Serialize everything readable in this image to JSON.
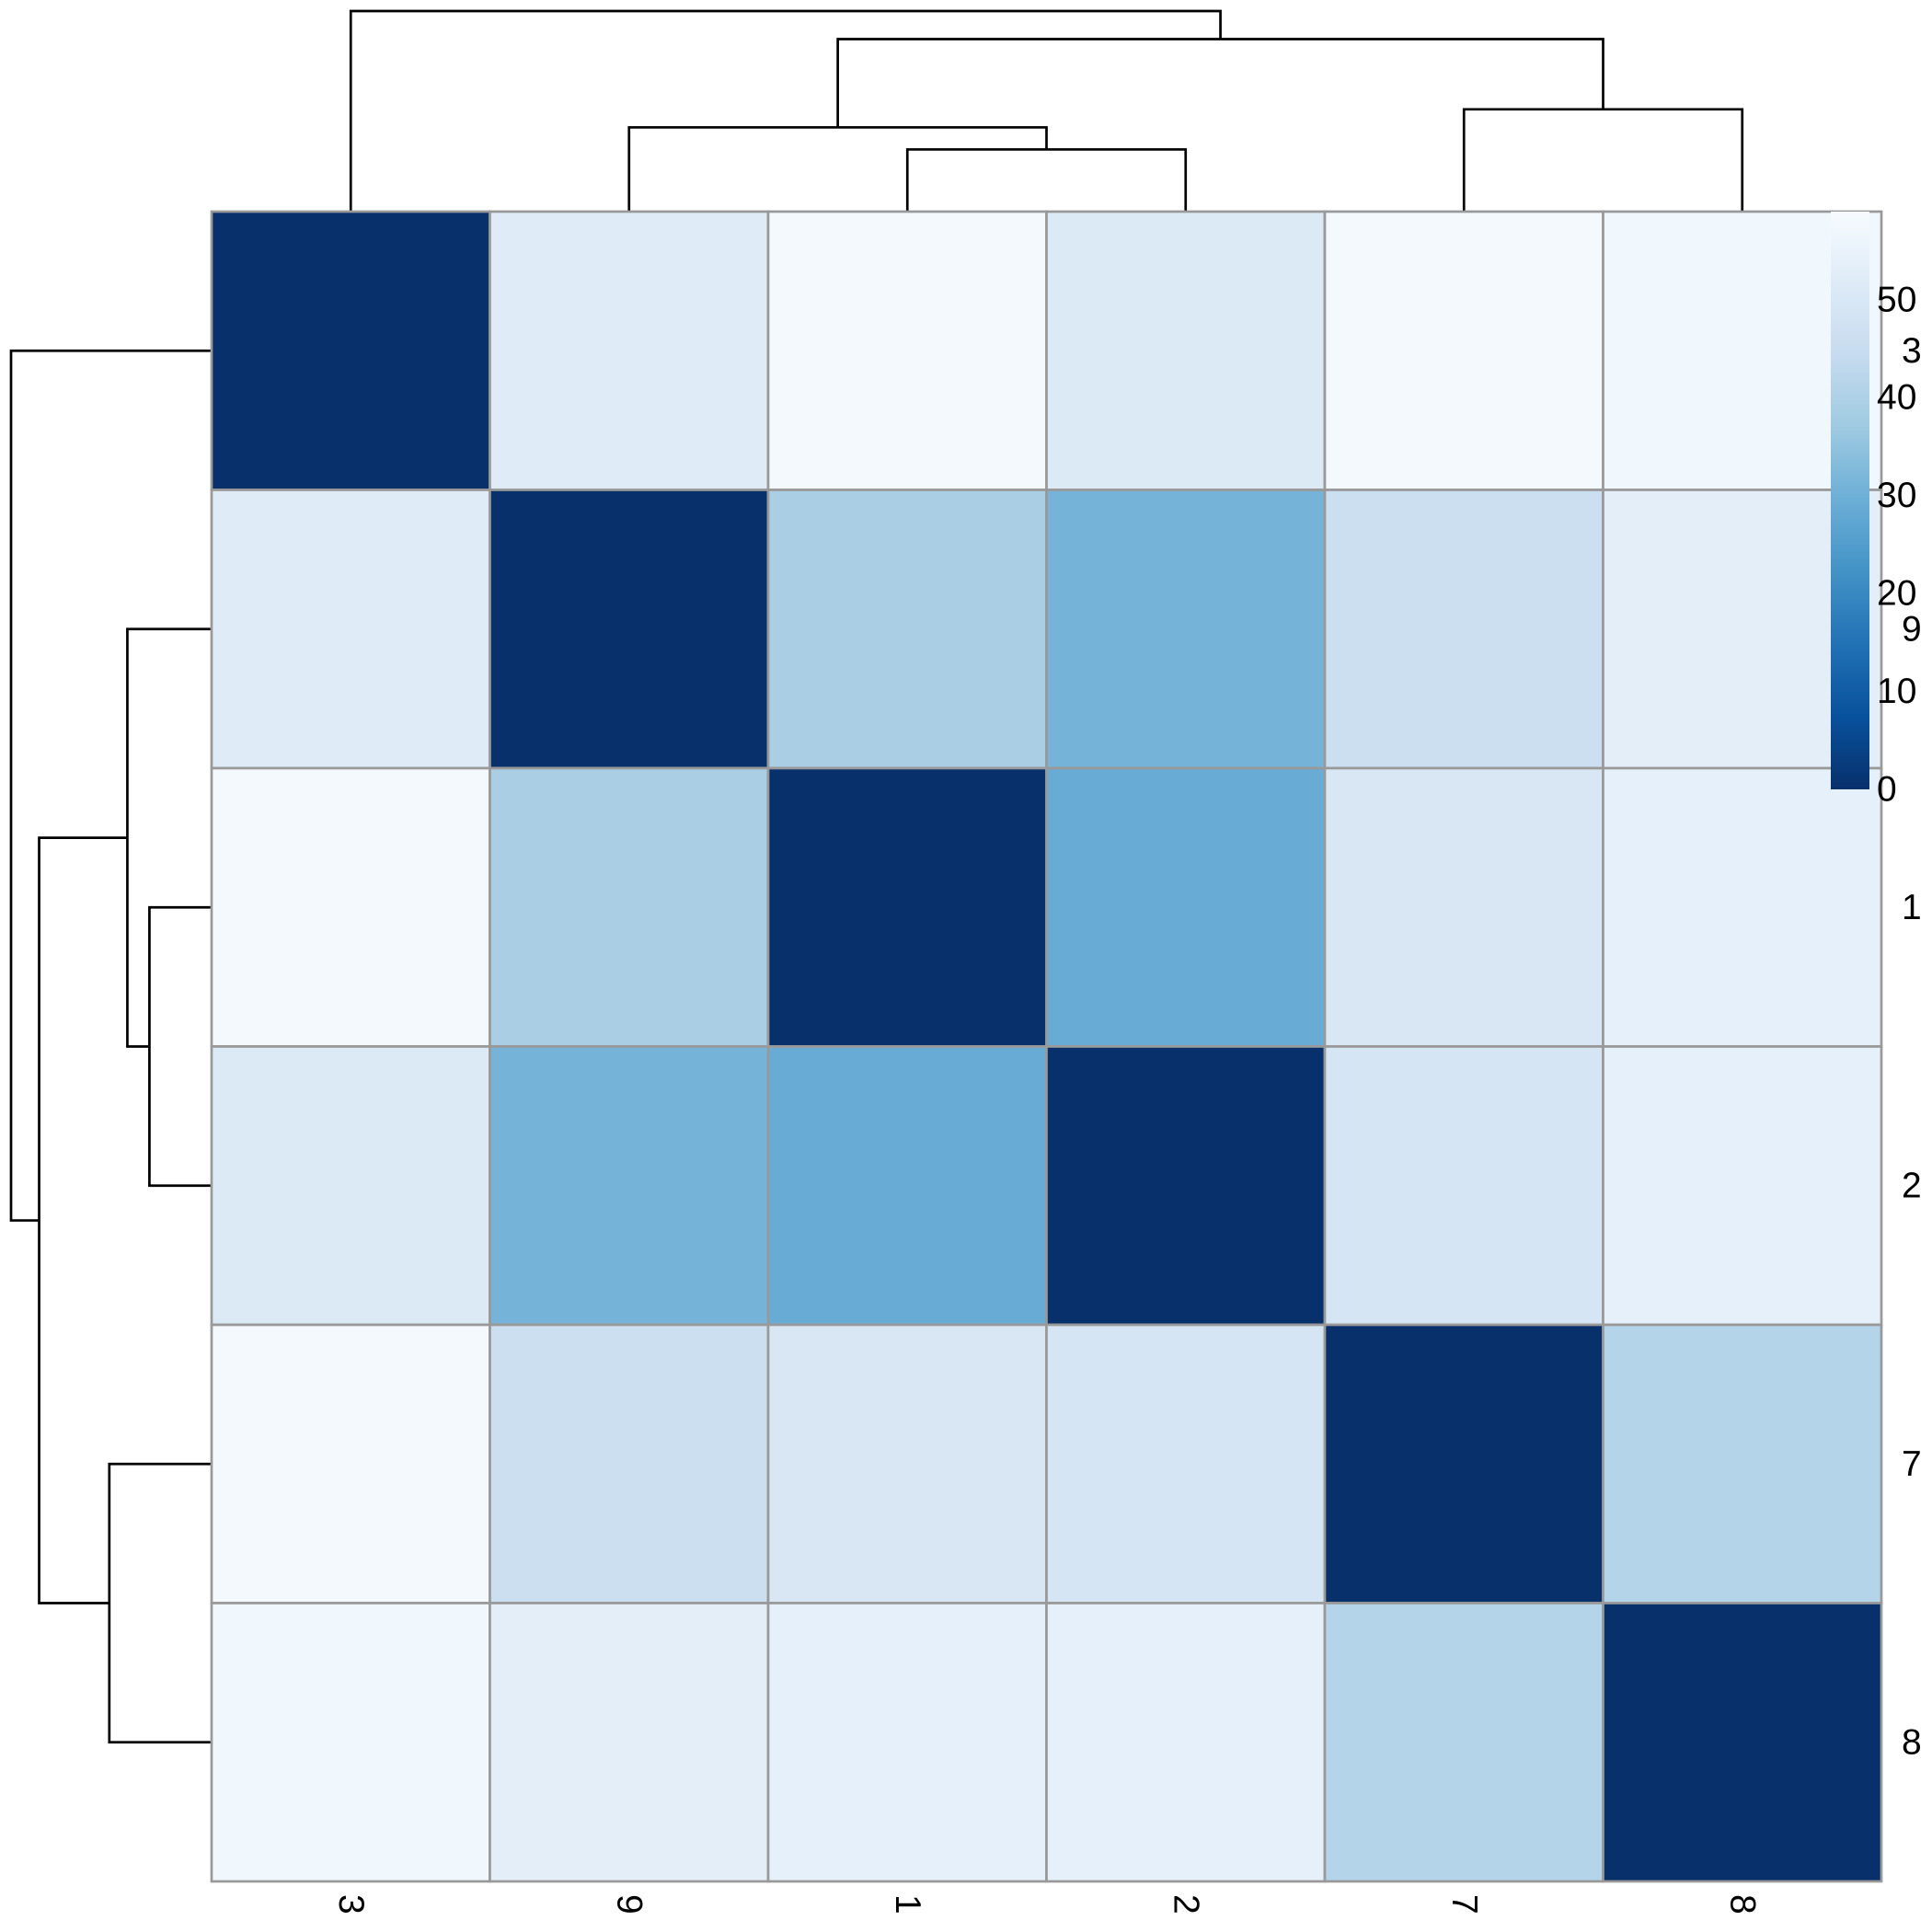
{
  "chart_data": {
    "type": "heatmap",
    "title": "",
    "row_labels": [
      "3",
      "9",
      "1",
      "2",
      "7",
      "8"
    ],
    "col_labels": [
      "3",
      "9",
      "1",
      "2",
      "7",
      "8"
    ],
    "values": [
      [
        0,
        52,
        58,
        51,
        58,
        57
      ],
      [
        52,
        0,
        39,
        31,
        46,
        53
      ],
      [
        58,
        39,
        0,
        29,
        50,
        54
      ],
      [
        51,
        31,
        29,
        0,
        49,
        54
      ],
      [
        58,
        46,
        50,
        49,
        0,
        41
      ],
      [
        57,
        53,
        54,
        54,
        41,
        0
      ]
    ],
    "color_scale": {
      "min": 0,
      "max": 59,
      "ticks": [
        "0",
        "10",
        "20",
        "30",
        "40",
        "50"
      ],
      "tick_values": [
        0,
        10,
        20,
        30,
        40,
        50
      ],
      "colors": [
        "#08306B",
        "#08519C",
        "#2171B5",
        "#4292C6",
        "#6BAED6",
        "#9ECAE1",
        "#C6DBEF",
        "#DEEBF7",
        "#F7FBFF"
      ]
    },
    "col_dendrogram": {
      "merges": [
        [
          "1",
          "2"
        ],
        [
          "9",
          "1+2"
        ],
        [
          "7",
          "8"
        ],
        [
          "9+1+2",
          "7+8"
        ],
        [
          "3",
          "9+1+2+7+8"
        ]
      ]
    },
    "row_dendrogram": {
      "merges": [
        [
          "1",
          "2"
        ],
        [
          "9",
          "1+2"
        ],
        [
          "7",
          "8"
        ],
        [
          "9+1+2",
          "7+8"
        ],
        [
          "3",
          "9+1+2+7+8"
        ]
      ]
    },
    "grid": true,
    "legend_position": "top-right"
  }
}
